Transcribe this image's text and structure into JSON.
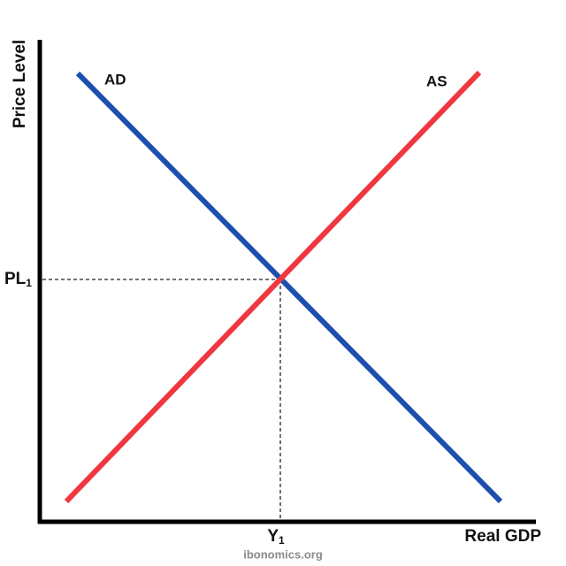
{
  "axes": {
    "y_label": "Price Level",
    "x_label": "Real GDP"
  },
  "curves": [
    {
      "label": "AD"
    },
    {
      "label": "AS"
    }
  ],
  "equilibrium": {
    "price_label": {
      "main": "PL",
      "sub": "1"
    },
    "output_label": {
      "main": "Y",
      "sub": "1"
    }
  },
  "footer": "ibonomics.org"
}
